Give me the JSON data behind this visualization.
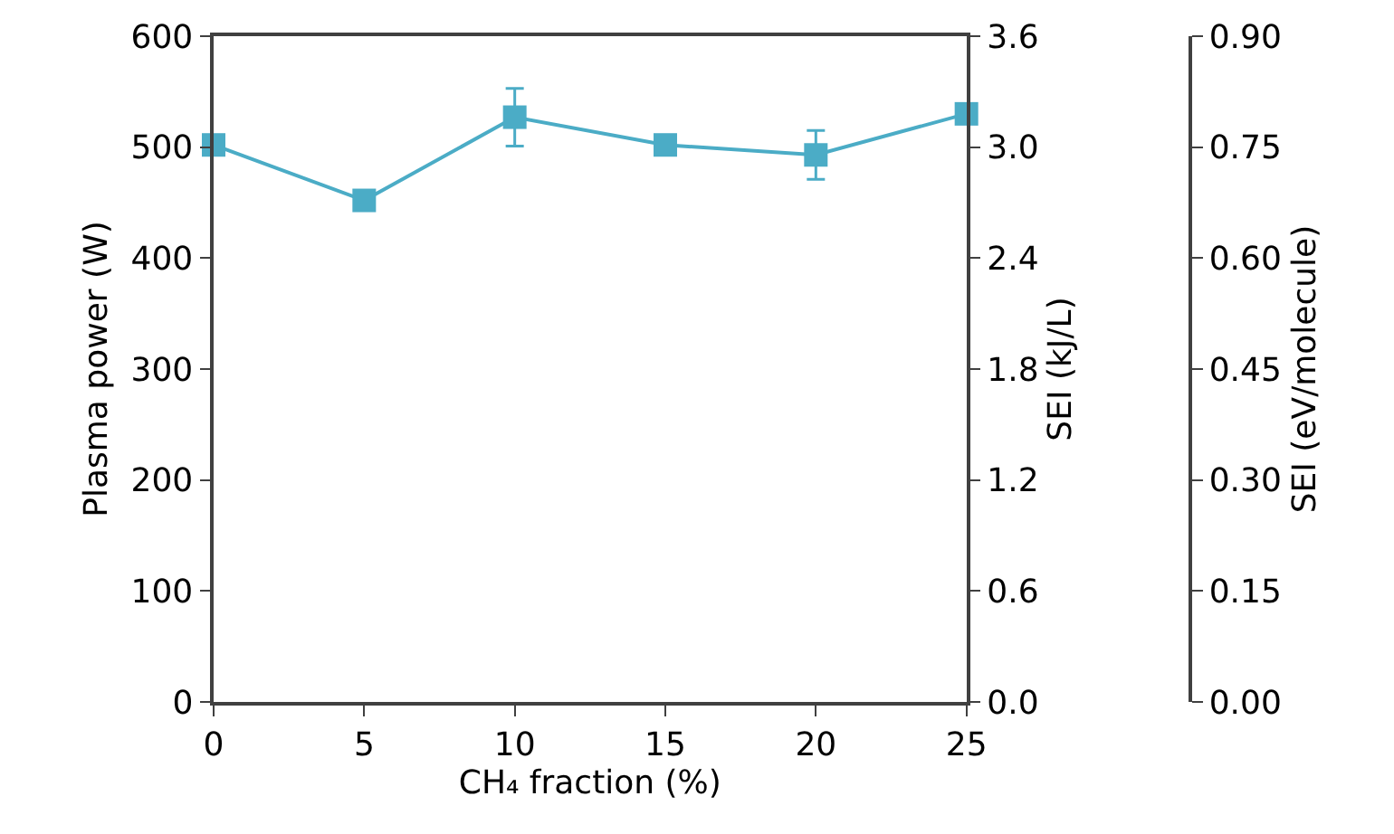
{
  "chart_data": {
    "type": "line",
    "xlabel": "CH₄ fraction (%)",
    "ylabel": "Plasma power (W)",
    "y2label": "SEI (kJ/L)",
    "y3label": "SEI (eV/molecule)",
    "x": [
      0,
      5,
      10,
      15,
      20,
      25
    ],
    "series": [
      {
        "color": "#4bacc6",
        "values": [
          502,
          452,
          527,
          502,
          493,
          530
        ],
        "errors": [
          null,
          null,
          26,
          null,
          22,
          null
        ]
      }
    ],
    "xlim": [
      0,
      25
    ],
    "xticks": [
      0,
      5,
      10,
      15,
      20,
      25
    ],
    "ylim": [
      0,
      600
    ],
    "yticks": [
      0,
      100,
      200,
      300,
      400,
      500,
      600
    ],
    "y2lim": [
      0,
      3.6
    ],
    "y2ticks": [
      {
        "value": 0,
        "label": "0.0"
      },
      {
        "value": 0.6,
        "label": "0.6"
      },
      {
        "value": 1.2,
        "label": "1.2"
      },
      {
        "value": 1.8,
        "label": "1.8"
      },
      {
        "value": 2.4,
        "label": "2.4"
      },
      {
        "value": 3.0,
        "label": "3.0"
      },
      {
        "value": 3.6,
        "label": "3.6"
      }
    ],
    "y3lim": [
      0,
      0.9
    ],
    "y3ticks": [
      {
        "value": 0,
        "label": "0.00"
      },
      {
        "value": 0.15,
        "label": "0.15"
      },
      {
        "value": 0.3,
        "label": "0.30"
      },
      {
        "value": 0.45,
        "label": "0.45"
      },
      {
        "value": 0.6,
        "label": "0.60"
      },
      {
        "value": 0.75,
        "label": "0.75"
      },
      {
        "value": 0.9,
        "label": "0.90"
      }
    ],
    "marker": "square",
    "line_style": "solid"
  }
}
